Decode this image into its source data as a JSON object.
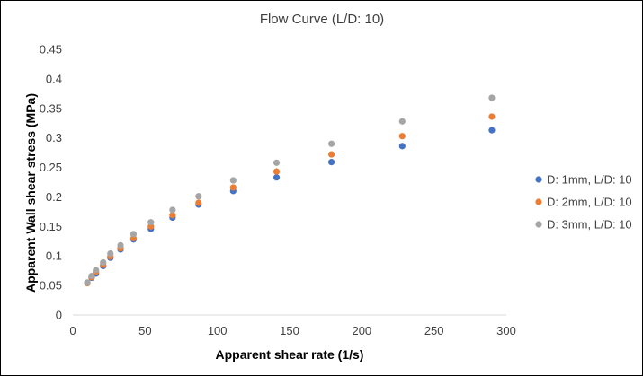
{
  "chart_data": {
    "type": "scatter",
    "title": "Flow Curve (L/D: 10)",
    "xlabel": "Apparent shear rate (1/s)",
    "ylabel": "Apparent Wall shear stress (MPa)",
    "xlim": [
      0,
      300
    ],
    "ylim": [
      0,
      0.45
    ],
    "xticks": [
      "0",
      "50",
      "100",
      "150",
      "200",
      "250",
      "300"
    ],
    "yticks": [
      "0",
      "0.05",
      "0.1",
      "0.15",
      "0.2",
      "0.25",
      "0.3",
      "0.35",
      "0.4",
      "0.45"
    ],
    "grid": false,
    "legend_position": "right",
    "series": [
      {
        "name": "D: 1mm, L/D: 10",
        "color": "#4472C4",
        "x": [
          10,
          13,
          16,
          21,
          26,
          33,
          42,
          54,
          69,
          87,
          111,
          141,
          179,
          228,
          290
        ],
        "y": [
          0.054,
          0.063,
          0.07,
          0.083,
          0.097,
          0.111,
          0.128,
          0.146,
          0.165,
          0.187,
          0.21,
          0.233,
          0.259,
          0.286,
          0.313
        ]
      },
      {
        "name": "D: 2mm, L/D: 10",
        "color": "#ED7D31",
        "x": [
          10,
          13,
          16,
          21,
          26,
          33,
          42,
          54,
          69,
          87,
          111,
          141,
          179,
          228,
          290
        ],
        "y": [
          0.054,
          0.064,
          0.073,
          0.085,
          0.099,
          0.113,
          0.13,
          0.15,
          0.169,
          0.19,
          0.216,
          0.243,
          0.272,
          0.303,
          0.336
        ]
      },
      {
        "name": "D: 3mm, L/D: 10",
        "color": "#A5A5A5",
        "x": [
          10,
          13,
          16,
          21,
          26,
          33,
          42,
          54,
          69,
          87,
          111,
          141,
          179,
          228,
          290
        ],
        "y": [
          0.055,
          0.066,
          0.076,
          0.089,
          0.104,
          0.118,
          0.137,
          0.157,
          0.178,
          0.201,
          0.228,
          0.258,
          0.29,
          0.328,
          0.368
        ]
      }
    ]
  }
}
